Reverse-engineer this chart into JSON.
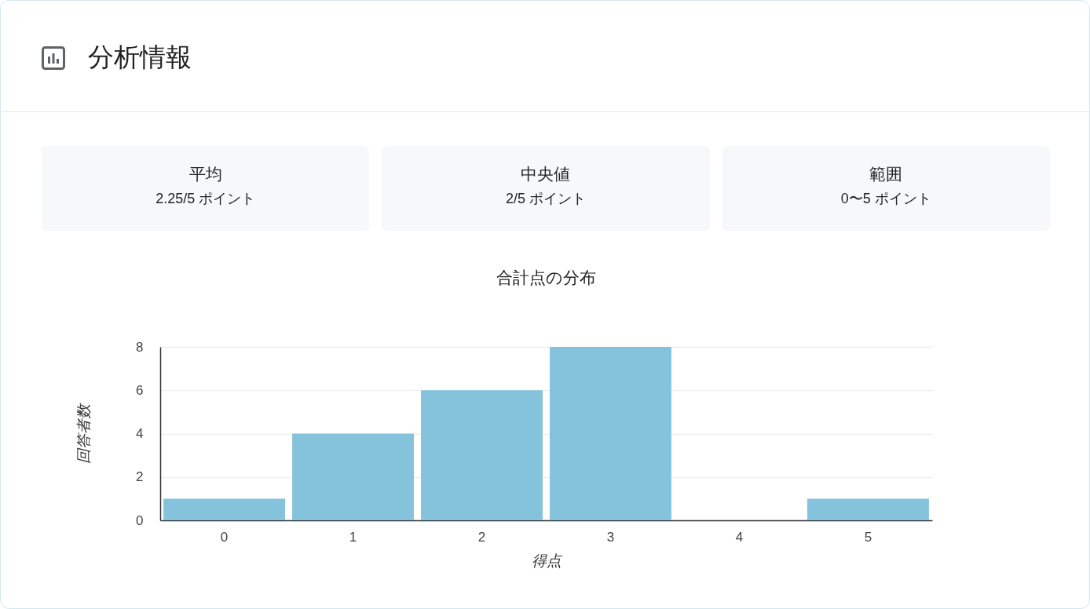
{
  "chart_data": [
    {
      "type": "other",
      "title": "分析情報",
      "annotations": [
        "平均",
        "2.25/5 ポイント",
        "中央値",
        "2/5 ポイント",
        "範囲",
        "0〜5 ポイント"
      ]
    },
    {
      "type": "bar",
      "title": "合計点の分布",
      "xlabel": "得点",
      "ylabel": "回答者数",
      "categories": [
        "0",
        "1",
        "2",
        "3",
        "4",
        "5"
      ],
      "values": [
        1,
        4,
        6,
        8,
        0,
        1
      ],
      "color": "#85c3dc",
      "ylim": [
        0,
        8
      ],
      "yticks": [
        0,
        2,
        4,
        6,
        8
      ],
      "grid": "y"
    }
  ]
}
